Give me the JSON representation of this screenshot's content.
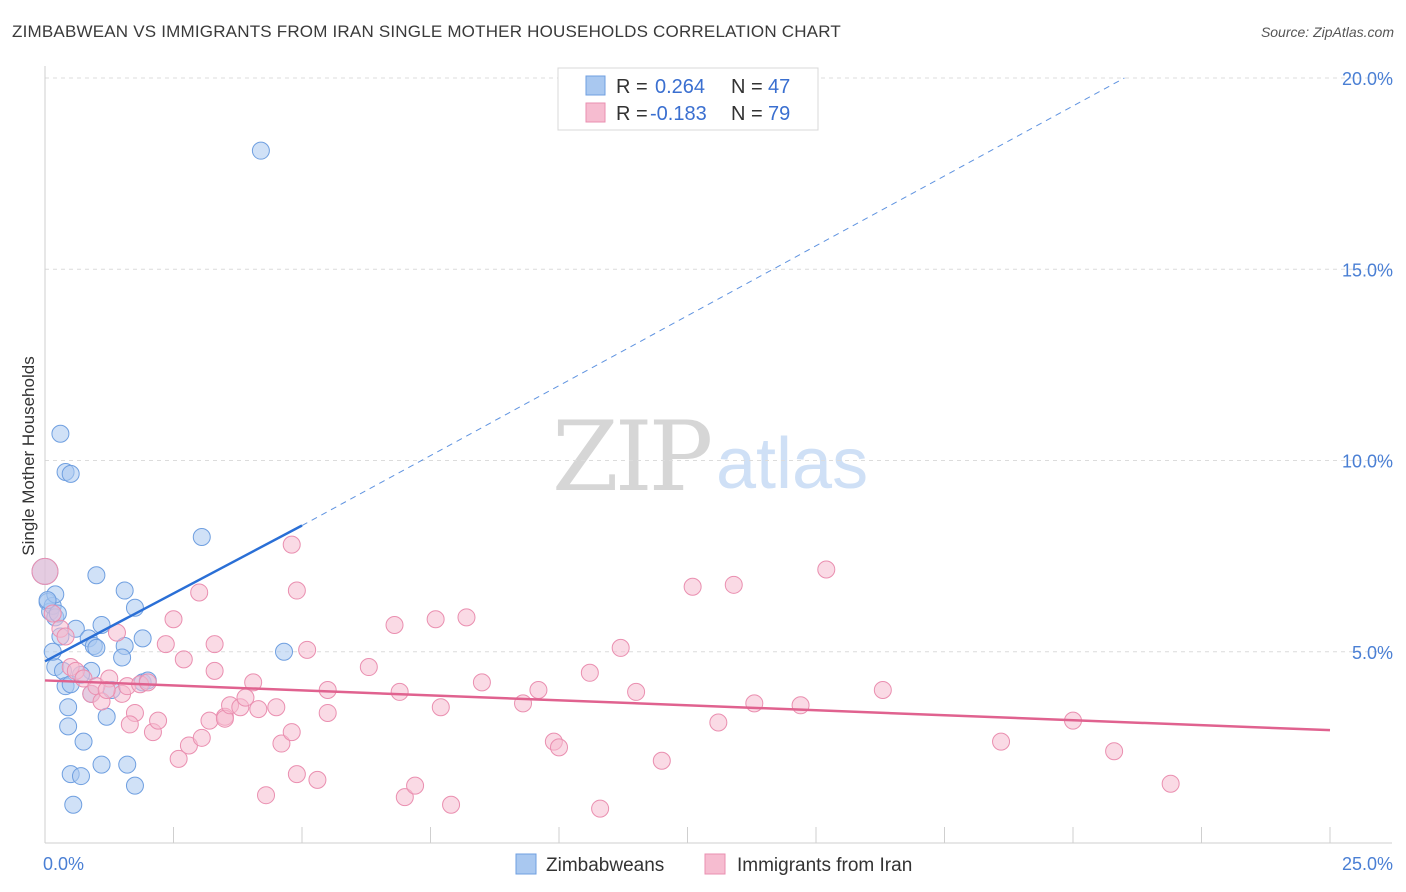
{
  "title": "ZIMBABWEAN VS IMMIGRANTS FROM IRAN SINGLE MOTHER HOUSEHOLDS CORRELATION CHART",
  "source": "Source: ZipAtlas.com",
  "watermark": {
    "zip": "ZIP",
    "atlas": "atlas"
  },
  "chart_data": {
    "type": "scatter",
    "ylabel": "Single Mother Households",
    "xlim": [
      0,
      25
    ],
    "ylim": [
      0,
      20
    ],
    "x_tick_labels": [
      {
        "value": 0,
        "label": "0.0%"
      },
      {
        "value": 25,
        "label": "25.0%"
      }
    ],
    "y_tick_labels": [
      {
        "value": 5,
        "label": "5.0%"
      },
      {
        "value": 10,
        "label": "10.0%"
      },
      {
        "value": 15,
        "label": "15.0%"
      },
      {
        "value": 20,
        "label": "20.0%"
      }
    ],
    "grid": true,
    "legend_position": "top-center",
    "legend": [
      {
        "r_label": "R =",
        "r_value": "0.264",
        "n_label": "N =",
        "n_value": "47",
        "color": "#a9c8f0"
      },
      {
        "r_label": "R =",
        "r_value": "-0.183",
        "n_label": "N =",
        "n_value": "79",
        "color": "#f6bcd0"
      }
    ],
    "series": [
      {
        "name": "Zimbabweans",
        "color": "#a9c8f0",
        "stroke": "#6f9fe0",
        "line_color": "#2a6fd6",
        "trend": {
          "x0": 0,
          "y0": 4.75,
          "x1": 5.0,
          "y1": 8.3,
          "dash_to_x": 21.0,
          "dash_to_y": 20.0
        },
        "points": [
          [
            0.0,
            7.1
          ],
          [
            0.05,
            6.3
          ],
          [
            0.1,
            6.05
          ],
          [
            0.15,
            6.2
          ],
          [
            0.2,
            5.9
          ],
          [
            0.25,
            6.0
          ],
          [
            0.2,
            6.5
          ],
          [
            0.3,
            10.7
          ],
          [
            0.4,
            9.7
          ],
          [
            0.5,
            9.65
          ],
          [
            0.2,
            4.6
          ],
          [
            0.35,
            4.5
          ],
          [
            0.4,
            4.1
          ],
          [
            0.5,
            4.15
          ],
          [
            0.3,
            5.4
          ],
          [
            0.6,
            5.6
          ],
          [
            0.85,
            5.35
          ],
          [
            0.95,
            5.15
          ],
          [
            1.0,
            5.1
          ],
          [
            1.1,
            5.7
          ],
          [
            0.9,
            4.5
          ],
          [
            0.9,
            3.9
          ],
          [
            1.2,
            3.3
          ],
          [
            0.45,
            3.55
          ],
          [
            0.45,
            3.05
          ],
          [
            0.75,
            2.65
          ],
          [
            0.5,
            1.8
          ],
          [
            0.7,
            1.75
          ],
          [
            0.55,
            1.0
          ],
          [
            1.0,
            7.0
          ],
          [
            1.55,
            6.6
          ],
          [
            1.75,
            6.15
          ],
          [
            1.55,
            5.15
          ],
          [
            1.5,
            4.85
          ],
          [
            1.9,
            5.35
          ],
          [
            1.9,
            4.2
          ],
          [
            1.6,
            2.05
          ],
          [
            1.75,
            1.5
          ],
          [
            3.05,
            8.0
          ],
          [
            4.2,
            18.1
          ],
          [
            4.65,
            5.0
          ],
          [
            1.1,
            2.05
          ],
          [
            0.15,
            5.0
          ],
          [
            0.7,
            4.4
          ],
          [
            1.3,
            4.0
          ],
          [
            0.05,
            6.35
          ],
          [
            2.0,
            4.25
          ]
        ]
      },
      {
        "name": "Immigrants from Iran",
        "color": "#f6bcd0",
        "stroke": "#ea8fb0",
        "line_color": "#e0628f",
        "trend": {
          "x0": 0,
          "y0": 4.25,
          "x1": 25.0,
          "y1": 2.95
        },
        "points": [
          [
            0.0,
            7.1
          ],
          [
            0.15,
            6.0
          ],
          [
            0.3,
            5.6
          ],
          [
            0.4,
            5.4
          ],
          [
            0.5,
            4.6
          ],
          [
            0.6,
            4.5
          ],
          [
            0.75,
            4.3
          ],
          [
            0.9,
            3.9
          ],
          [
            1.0,
            4.1
          ],
          [
            1.1,
            3.7
          ],
          [
            1.25,
            4.3
          ],
          [
            1.4,
            5.5
          ],
          [
            1.5,
            3.9
          ],
          [
            1.6,
            4.1
          ],
          [
            1.85,
            4.15
          ],
          [
            2.0,
            4.2
          ],
          [
            1.75,
            3.4
          ],
          [
            1.65,
            3.1
          ],
          [
            2.1,
            2.9
          ],
          [
            2.2,
            3.2
          ],
          [
            2.35,
            5.2
          ],
          [
            2.5,
            5.85
          ],
          [
            2.7,
            4.8
          ],
          [
            2.6,
            2.2
          ],
          [
            2.8,
            2.55
          ],
          [
            3.0,
            6.55
          ],
          [
            3.05,
            2.75
          ],
          [
            3.2,
            3.2
          ],
          [
            3.3,
            4.5
          ],
          [
            3.3,
            5.2
          ],
          [
            3.5,
            3.3
          ],
          [
            3.5,
            3.25
          ],
          [
            3.6,
            3.6
          ],
          [
            3.8,
            3.55
          ],
          [
            3.9,
            3.8
          ],
          [
            4.05,
            4.2
          ],
          [
            4.15,
            3.5
          ],
          [
            4.3,
            1.25
          ],
          [
            4.5,
            3.55
          ],
          [
            4.6,
            2.6
          ],
          [
            4.8,
            2.9
          ],
          [
            4.8,
            7.8
          ],
          [
            4.9,
            1.8
          ],
          [
            4.9,
            6.6
          ],
          [
            5.1,
            5.05
          ],
          [
            5.3,
            1.65
          ],
          [
            5.5,
            3.4
          ],
          [
            5.5,
            4.0
          ],
          [
            6.3,
            4.6
          ],
          [
            6.8,
            5.7
          ],
          [
            6.9,
            3.95
          ],
          [
            7.0,
            1.2
          ],
          [
            7.2,
            1.5
          ],
          [
            7.6,
            5.85
          ],
          [
            7.7,
            3.55
          ],
          [
            7.9,
            1.0
          ],
          [
            8.2,
            5.9
          ],
          [
            8.5,
            4.2
          ],
          [
            9.3,
            3.65
          ],
          [
            9.6,
            4.0
          ],
          [
            9.9,
            2.65
          ],
          [
            10.0,
            2.5
          ],
          [
            10.6,
            4.45
          ],
          [
            10.8,
            0.9
          ],
          [
            11.2,
            5.1
          ],
          [
            11.5,
            3.95
          ],
          [
            12.0,
            2.15
          ],
          [
            12.6,
            6.7
          ],
          [
            13.1,
            3.15
          ],
          [
            13.4,
            6.75
          ],
          [
            13.8,
            3.65
          ],
          [
            14.7,
            3.6
          ],
          [
            15.2,
            7.15
          ],
          [
            16.3,
            4.0
          ],
          [
            18.6,
            2.65
          ],
          [
            20.0,
            3.2
          ],
          [
            20.8,
            2.4
          ],
          [
            21.9,
            1.55
          ],
          [
            1.2,
            4.0
          ]
        ]
      }
    ]
  }
}
